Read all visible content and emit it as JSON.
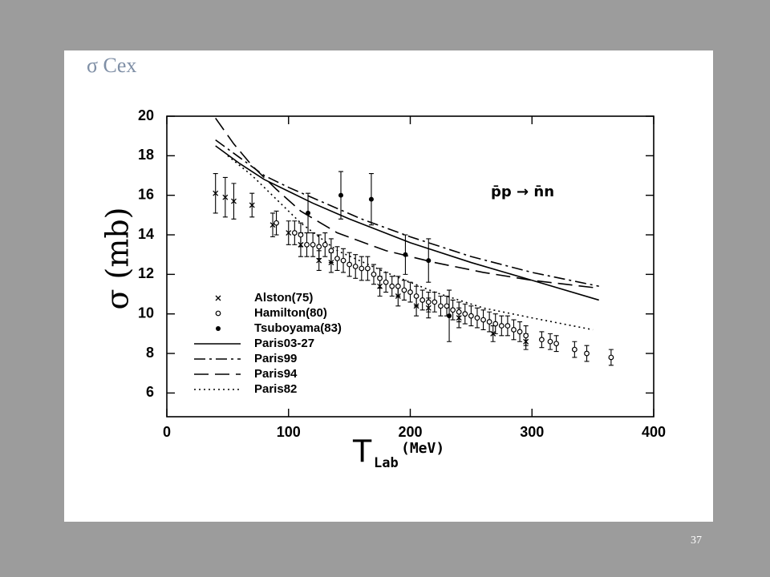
{
  "slide": {
    "title": "σ Cex",
    "page_number": "37"
  },
  "chart_data": {
    "type": "scatter-line",
    "y_label": "σ (mb)",
    "x_label": {
      "symbol": "T",
      "subscript": "Lab",
      "unit": "(MeV)"
    },
    "annotation": "p̄p → n̄n",
    "xlim": [
      0,
      400
    ],
    "xticks": [
      0,
      100,
      200,
      300,
      400
    ],
    "ylim": [
      4.8,
      20
    ],
    "yticks": [
      6,
      8,
      10,
      12,
      14,
      16,
      18,
      20
    ],
    "series": [
      {
        "name": "Alston(75)",
        "color": "#000000",
        "marker": "cross",
        "x": [
          40,
          48,
          55,
          70,
          87,
          100,
          110,
          125,
          135,
          175,
          190,
          205,
          215,
          240,
          268,
          295
        ],
        "values": [
          16.1,
          15.9,
          15.7,
          15.5,
          14.5,
          14.1,
          13.5,
          12.7,
          12.6,
          11.4,
          10.9,
          10.4,
          10.3,
          9.8,
          9.0,
          8.6
        ],
        "errors": [
          1.0,
          1.0,
          0.9,
          0.6,
          0.6,
          0.6,
          0.6,
          0.5,
          0.5,
          0.5,
          0.5,
          0.5,
          0.5,
          0.5,
          0.4,
          0.4
        ]
      },
      {
        "name": "Hamilton(80)",
        "color": "#000000",
        "marker": "circle",
        "x": [
          90,
          105,
          110,
          115,
          120,
          125,
          130,
          135,
          140,
          145,
          150,
          155,
          160,
          165,
          170,
          175,
          180,
          185,
          190,
          195,
          200,
          205,
          210,
          215,
          220,
          225,
          230,
          235,
          240,
          245,
          250,
          255,
          260,
          265,
          270,
          275,
          280,
          285,
          290,
          295,
          308,
          315,
          320,
          335,
          345,
          365
        ],
        "values": [
          14.6,
          14.1,
          14.0,
          13.5,
          13.5,
          13.4,
          13.5,
          13.2,
          12.8,
          12.7,
          12.5,
          12.4,
          12.3,
          12.3,
          12.0,
          11.8,
          11.6,
          11.4,
          11.4,
          11.2,
          11.1,
          10.9,
          10.7,
          10.6,
          10.6,
          10.4,
          10.4,
          10.2,
          10.1,
          10.0,
          9.9,
          9.8,
          9.7,
          9.6,
          9.5,
          9.4,
          9.4,
          9.2,
          9.1,
          8.9,
          8.7,
          8.6,
          8.5,
          8.2,
          8.0,
          7.8
        ],
        "errors": [
          0.6,
          0.6,
          0.6,
          0.6,
          0.6,
          0.6,
          0.6,
          0.6,
          0.6,
          0.6,
          0.6,
          0.6,
          0.6,
          0.6,
          0.5,
          0.5,
          0.5,
          0.5,
          0.5,
          0.5,
          0.5,
          0.5,
          0.5,
          0.5,
          0.5,
          0.5,
          0.5,
          0.5,
          0.5,
          0.5,
          0.5,
          0.5,
          0.5,
          0.5,
          0.5,
          0.5,
          0.5,
          0.5,
          0.5,
          0.5,
          0.4,
          0.4,
          0.4,
          0.4,
          0.4,
          0.4
        ]
      },
      {
        "name": "Tsuboyama(83)",
        "color": "#000000",
        "marker": "dot",
        "x": [
          116,
          143,
          168,
          196,
          215,
          232
        ],
        "values": [
          15.1,
          16.0,
          15.8,
          13.0,
          12.7,
          9.9
        ],
        "errors": [
          1.0,
          1.2,
          1.3,
          1.0,
          1.1,
          1.3
        ]
      },
      {
        "name": "Paris03-27",
        "color": "#000000",
        "dash": "solid",
        "x": [
          40,
          60,
          80,
          100,
          120,
          150,
          200,
          250,
          300,
          355
        ],
        "values": [
          18.5,
          17.6,
          16.8,
          16.2,
          15.6,
          14.8,
          13.6,
          12.6,
          11.7,
          10.7
        ]
      },
      {
        "name": "Paris99",
        "color": "#000000",
        "dash": "dashdot",
        "x": [
          40,
          60,
          80,
          100,
          130,
          160,
          200,
          250,
          300,
          355
        ],
        "values": [
          18.8,
          17.9,
          17.0,
          16.4,
          15.6,
          14.8,
          13.9,
          12.9,
          12.1,
          11.4
        ]
      },
      {
        "name": "Paris94",
        "color": "#000000",
        "dash": "dash",
        "x": [
          40,
          55,
          70,
          90,
          110,
          140,
          180,
          220,
          260,
          300,
          355
        ],
        "values": [
          19.9,
          18.6,
          17.5,
          16.3,
          15.2,
          14.1,
          13.2,
          12.6,
          12.1,
          11.7,
          11.3
        ]
      },
      {
        "name": "Paris82",
        "color": "#000000",
        "dash": "dotted",
        "x": [
          50,
          70,
          90,
          110,
          140,
          180,
          220,
          260,
          300,
          350
        ],
        "values": [
          18.0,
          17.0,
          15.8,
          14.6,
          13.2,
          12.1,
          11.1,
          10.3,
          9.8,
          9.2
        ]
      }
    ]
  }
}
